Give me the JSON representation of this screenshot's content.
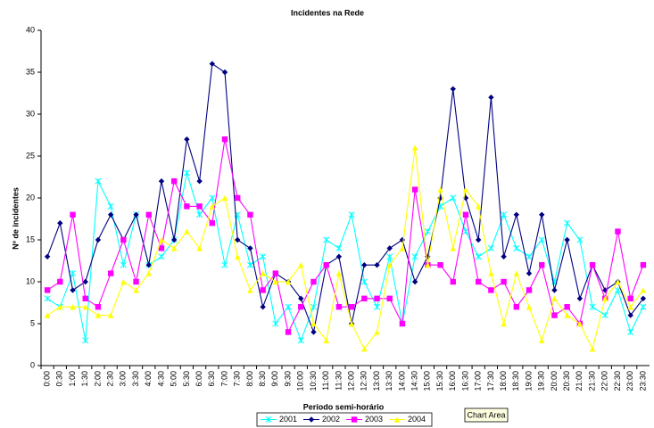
{
  "chart_data": {
    "type": "line",
    "title": "Incidentes na Rede",
    "x_label": "Período semi-horário",
    "y_label": "Nº de incidentes",
    "categories": [
      "0:00",
      "0:30",
      "1:00",
      "1:30",
      "2:00",
      "2:30",
      "3:00",
      "3:30",
      "4:00",
      "4:30",
      "5:00",
      "5:30",
      "6:00",
      "6:30",
      "7:00",
      "7:30",
      "8:00",
      "8:30",
      "9:00",
      "9:30",
      "10:00",
      "10:30",
      "11:00",
      "11:30",
      "12:00",
      "12:30",
      "13:00",
      "13:30",
      "14:00",
      "14:30",
      "15:00",
      "15:30",
      "16:00",
      "16:30",
      "17:00",
      "17:30",
      "18:00",
      "18:30",
      "19:00",
      "19:30",
      "20:00",
      "20:30",
      "21:00",
      "21:30",
      "22:00",
      "22:30",
      "23:00",
      "23:30"
    ],
    "series": [
      {
        "name": "2001",
        "color": "#00ffff",
        "marker": "star",
        "values": [
          8,
          7,
          11,
          3,
          22,
          19,
          12,
          18,
          12,
          13,
          15,
          23,
          18,
          20,
          12,
          18,
          12,
          13,
          5,
          7,
          3,
          7,
          15,
          14,
          18,
          10,
          7,
          13,
          5,
          13,
          16,
          19,
          20,
          16,
          13,
          14,
          18,
          14,
          13,
          15,
          10,
          17,
          15,
          7,
          6,
          9,
          4,
          7
        ]
      },
      {
        "name": "2002",
        "color": "#000080",
        "marker": "diamond",
        "values": [
          13,
          17,
          9,
          10,
          15,
          18,
          15,
          18,
          12,
          22,
          15,
          27,
          22,
          36,
          35,
          15,
          14,
          7,
          11,
          10,
          8,
          4,
          12,
          13,
          5,
          12,
          12,
          14,
          15,
          10,
          13,
          20,
          33,
          20,
          15,
          32,
          13,
          18,
          11,
          18,
          9,
          15,
          8,
          12,
          9,
          10,
          6,
          8
        ]
      },
      {
        "name": "2003",
        "color": "#ff00ff",
        "marker": "square",
        "values": [
          9,
          10,
          18,
          8,
          7,
          11,
          15,
          10,
          18,
          14,
          22,
          19,
          19,
          17,
          27,
          20,
          18,
          9,
          11,
          4,
          7,
          10,
          12,
          7,
          7,
          8,
          8,
          8,
          5,
          21,
          12,
          12,
          10,
          18,
          10,
          9,
          10,
          7,
          9,
          12,
          6,
          7,
          5,
          12,
          8,
          16,
          8,
          12
        ]
      },
      {
        "name": "2004",
        "color": "#ffff00",
        "marker": "triangle",
        "values": [
          6,
          7,
          7,
          7,
          6,
          6,
          10,
          9,
          11,
          15,
          14,
          16,
          14,
          19,
          20,
          13,
          9,
          11,
          10,
          10,
          12,
          5,
          3,
          11,
          5,
          2,
          4,
          12,
          14,
          26,
          12,
          21,
          14,
          21,
          19,
          11,
          5,
          11,
          7,
          3,
          8,
          6,
          5,
          2,
          8,
          10,
          7,
          9
        ]
      }
    ],
    "ylim": [
      0,
      40
    ],
    "yticks": [
      0,
      5,
      10,
      15,
      20,
      25,
      30,
      35,
      40
    ],
    "grid": false,
    "legend": "bottom"
  },
  "tooltip": "Chart Area"
}
